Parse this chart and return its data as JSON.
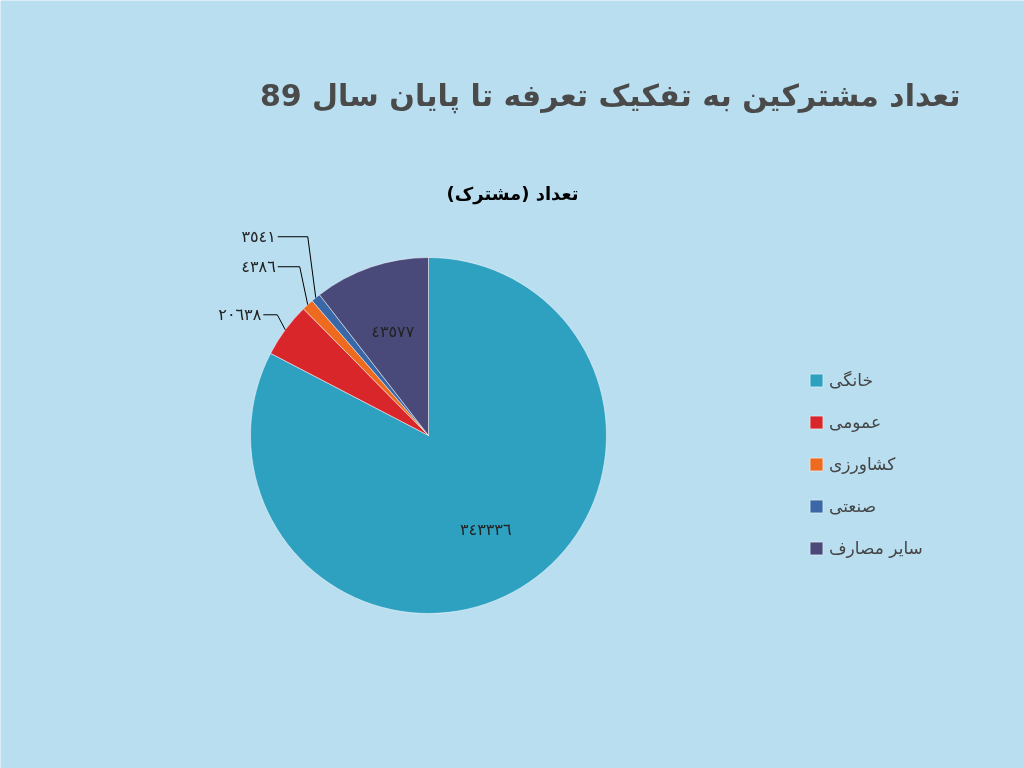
{
  "chart_data": {
    "type": "pie",
    "title": "تعداد مشترکین به تفکیک تعرفه تا پایان سال 89",
    "subtitle": "تعداد (مشترک)",
    "categories": [
      "خانگی",
      "عمومی",
      "کشاورزی",
      "صنعتی",
      "سایر مصارف"
    ],
    "values": [
      343336,
      20638,
      4386,
      3541,
      43577
    ],
    "colors": [
      "#2ea1c1",
      "#d9262b",
      "#ee6a1f",
      "#3a68a6",
      "#4a4a7a"
    ],
    "value_labels": [
      "٣٤٣٣٣٦",
      "٢٠٦٣٨",
      "٤٣٨٦",
      "٣٥٤١",
      "٤٣٥٧٧"
    ],
    "legend": "right"
  }
}
